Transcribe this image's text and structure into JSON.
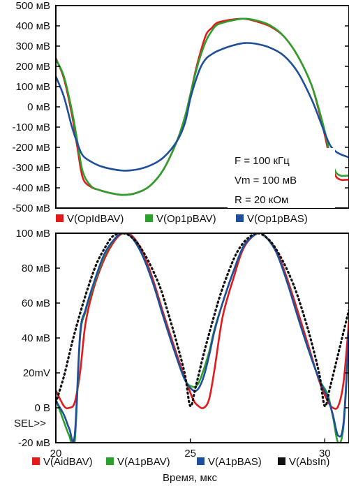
{
  "chart_data": [
    {
      "type": "line",
      "title": "",
      "xlabel": "",
      "ylabel": "",
      "x_range": [
        20,
        30.9
      ],
      "ylim": [
        -500,
        500
      ],
      "y_ticks": [
        {
          "value": 500,
          "label": "500 мВ"
        },
        {
          "value": 400,
          "label": "400 мВ"
        },
        {
          "value": 300,
          "label": "300 мВ"
        },
        {
          "value": 200,
          "label": "200 мВ"
        },
        {
          "value": 100,
          "label": "100 мВ"
        },
        {
          "value": 0,
          "label": "0 мВ"
        },
        {
          "value": -100,
          "label": "-100 мВ"
        },
        {
          "value": -200,
          "label": "-200 мВ"
        },
        {
          "value": -300,
          "label": "-300 мВ"
        },
        {
          "value": -400,
          "label": "-400 мВ"
        },
        {
          "value": -500,
          "label": "-500 мВ"
        }
      ],
      "annotation": [
        "F = 100 кГц",
        "Vm = 100 мВ",
        "R = 20 кОм"
      ],
      "legend": "bottom",
      "series": [
        {
          "name": "V(OpIdBAV)",
          "color": "#e31a1c",
          "x": [
            20.0,
            20.3,
            20.6,
            20.8,
            21.0,
            21.3,
            21.6,
            22.0,
            22.5,
            23.0,
            23.5,
            24.0,
            24.5,
            24.8,
            25.0,
            25.2,
            25.4,
            25.6,
            25.8,
            26.0,
            26.5,
            27.0,
            27.5,
            28.0,
            28.5,
            29.0,
            29.5,
            29.8,
            30.0,
            30.2,
            30.4,
            30.6,
            30.8,
            30.9
          ],
          "y": [
            240,
            140,
            -40,
            -200,
            -350,
            -395,
            -410,
            -425,
            -435,
            -425,
            -390,
            -310,
            -170,
            -50,
            60,
            180,
            280,
            360,
            390,
            415,
            430,
            435,
            420,
            395,
            345,
            250,
            110,
            -30,
            -140,
            -260,
            -340,
            -360,
            -360,
            -360
          ]
        },
        {
          "name": "V(Op1pBAV)",
          "color": "#2ca02c",
          "x": [
            20.0,
            20.3,
            20.6,
            20.8,
            21.0,
            21.3,
            21.6,
            22.0,
            22.5,
            23.0,
            23.5,
            24.0,
            24.5,
            24.8,
            25.0,
            25.2,
            25.4,
            25.6,
            25.8,
            26.0,
            26.5,
            27.0,
            27.5,
            28.0,
            28.5,
            29.0,
            29.5,
            29.8,
            30.0,
            30.2,
            30.4,
            30.6,
            30.8,
            30.9
          ],
          "y": [
            235,
            150,
            -20,
            -170,
            -320,
            -390,
            -410,
            -425,
            -435,
            -425,
            -390,
            -310,
            -170,
            -50,
            60,
            170,
            260,
            330,
            375,
            405,
            425,
            435,
            425,
            400,
            345,
            250,
            110,
            -20,
            -120,
            -240,
            -320,
            -340,
            -340,
            -340
          ]
        },
        {
          "name": "V(Op1pBAS)",
          "color": "#1f4e9c",
          "x": [
            20.0,
            20.3,
            20.6,
            20.8,
            21.0,
            21.3,
            21.6,
            22.0,
            22.5,
            23.0,
            23.5,
            24.0,
            24.5,
            24.8,
            25.0,
            25.2,
            25.4,
            25.6,
            25.8,
            26.0,
            26.5,
            27.0,
            27.5,
            28.0,
            28.5,
            29.0,
            29.5,
            29.8,
            30.0,
            30.2,
            30.4,
            30.6,
            30.8,
            30.9
          ],
          "y": [
            150,
            50,
            -100,
            -180,
            -240,
            -270,
            -290,
            -305,
            -315,
            -310,
            -290,
            -250,
            -170,
            -80,
            40,
            130,
            200,
            240,
            260,
            275,
            300,
            315,
            310,
            290,
            250,
            170,
            40,
            -60,
            -130,
            -190,
            -220,
            -235,
            -245,
            -250
          ]
        }
      ]
    },
    {
      "type": "line",
      "title": "",
      "xlabel": "Время, мкс",
      "ylabel": "",
      "x_range": [
        20,
        30.9
      ],
      "ylim": [
        -20,
        100
      ],
      "x_ticks": [
        {
          "value": 20,
          "label": "20"
        },
        {
          "value": 25,
          "label": "25"
        },
        {
          "value": 30,
          "label": "30"
        }
      ],
      "y_ticks": [
        {
          "value": 100,
          "label": "100 мВ"
        },
        {
          "value": 80,
          "label": "80 мВ"
        },
        {
          "value": 60,
          "label": "60 мВ"
        },
        {
          "value": 40,
          "label": "40 мВ"
        },
        {
          "value": 20,
          "label": "20mV"
        },
        {
          "value": 0,
          "label": "0 В"
        },
        {
          "value": -20,
          "label": "-20 мВ"
        }
      ],
      "sel_marker": "SEL>>",
      "legend": "bottom",
      "series": [
        {
          "name": "V(AidBAV)",
          "color": "#e31a1c",
          "dash": false,
          "x": [
            20.0,
            20.3,
            20.5,
            20.7,
            20.9,
            21.1,
            21.4,
            21.8,
            22.2,
            22.5,
            22.8,
            23.2,
            23.6,
            24.0,
            24.4,
            24.8,
            25.1,
            25.3,
            25.5,
            25.7,
            25.9,
            26.2,
            26.6,
            27.0,
            27.5,
            27.8,
            28.2,
            28.6,
            29.0,
            29.4,
            29.8,
            30.1,
            30.3,
            30.5,
            30.7,
            30.9
          ],
          "y": [
            10,
            1,
            0,
            3,
            20,
            48,
            68,
            85,
            96,
            100,
            99,
            90,
            74,
            54,
            35,
            17,
            5,
            1,
            0,
            5,
            22,
            52,
            74,
            92,
            100,
            98,
            90,
            74,
            55,
            35,
            15,
            4,
            0,
            1,
            15,
            50
          ]
        },
        {
          "name": "V(A1pBAV)",
          "color": "#2ca02c",
          "dash": false,
          "x": [
            20.0,
            20.3,
            20.5,
            20.7,
            20.9,
            21.1,
            21.4,
            21.8,
            22.2,
            22.5,
            22.8,
            23.2,
            23.6,
            24.0,
            24.4,
            24.8,
            25.1,
            25.3,
            25.5,
            25.7,
            25.9,
            26.2,
            26.6,
            27.0,
            27.5,
            27.8,
            28.2,
            28.6,
            29.0,
            29.4,
            29.8,
            30.1,
            30.3,
            30.5,
            30.7,
            30.9
          ],
          "y": [
            5,
            -8,
            -16,
            -20,
            40,
            55,
            70,
            87,
            97,
            100,
            98,
            88,
            72,
            52,
            33,
            16,
            12,
            14,
            22,
            32,
            45,
            60,
            78,
            93,
            100,
            98,
            89,
            72,
            52,
            33,
            16,
            8,
            -5,
            -20,
            -10,
            40
          ]
        },
        {
          "name": "V(A1pBAS)",
          "color": "#1f4e9c",
          "dash": false,
          "x": [
            20.0,
            20.3,
            20.5,
            20.7,
            20.9,
            21.1,
            21.4,
            21.8,
            22.2,
            22.5,
            22.8,
            23.2,
            23.6,
            24.0,
            24.4,
            24.8,
            25.1,
            25.3,
            25.5,
            25.7,
            25.9,
            26.2,
            26.6,
            27.0,
            27.5,
            27.8,
            28.2,
            28.6,
            29.0,
            29.4,
            29.8,
            30.1,
            30.3,
            30.5,
            30.7,
            30.9
          ],
          "y": [
            4,
            -4,
            -12,
            -16,
            42,
            56,
            71,
            88,
            97,
            100,
            98,
            88,
            72,
            52,
            33,
            16,
            10,
            11,
            18,
            30,
            44,
            60,
            78,
            93,
            100,
            98,
            89,
            72,
            52,
            33,
            16,
            6,
            -4,
            -16,
            -8,
            45
          ]
        },
        {
          "name": "V(AbsIn)",
          "color": "#111111",
          "dash": true,
          "x": [
            20.0,
            20.3,
            20.6,
            20.9,
            21.2,
            21.5,
            21.8,
            22.1,
            22.4,
            22.5,
            22.7,
            23.0,
            23.3,
            23.6,
            23.9,
            24.2,
            24.5,
            24.8,
            25.0,
            25.2,
            25.5,
            25.8,
            26.1,
            26.4,
            26.7,
            27.0,
            27.3,
            27.5,
            27.7,
            28.0,
            28.3,
            28.6,
            28.9,
            29.2,
            29.5,
            29.8,
            30.0,
            30.2,
            30.5,
            30.8,
            30.9
          ],
          "y": [
            3,
            18,
            37,
            54,
            69,
            82,
            91,
            98,
            100,
            100,
            99,
            95,
            88,
            79,
            68,
            53,
            37,
            19,
            1,
            12,
            31,
            48,
            64,
            77,
            88,
            95,
            99,
            100,
            99,
            95,
            88,
            79,
            68,
            54,
            38,
            19,
            1,
            12,
            31,
            50,
            56
          ]
        }
      ]
    }
  ]
}
